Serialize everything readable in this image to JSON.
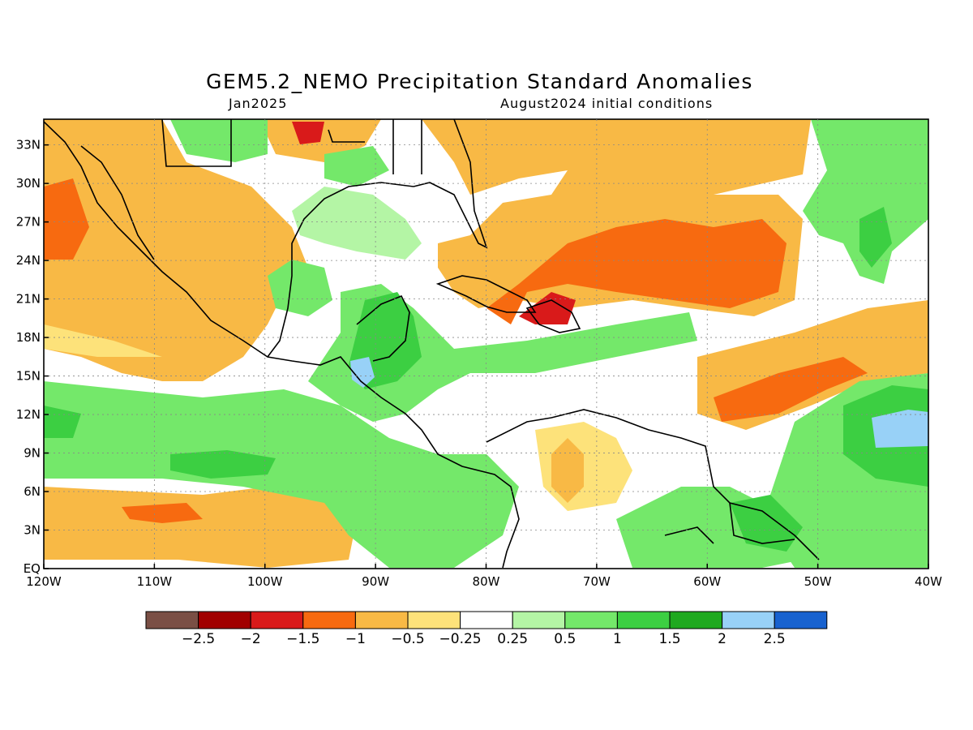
{
  "title": "GEM5.2_NEMO Precipitation Standard Anomalies",
  "subtitle_left": "Jan2025",
  "subtitle_right": "August2024 initial conditions",
  "map": {
    "lon_range": [
      -120,
      -40
    ],
    "lat_range": [
      0,
      35
    ],
    "lon_ticks": [
      {
        "lon": -120,
        "label": "120W"
      },
      {
        "lon": -110,
        "label": "110W"
      },
      {
        "lon": -100,
        "label": "100W"
      },
      {
        "lon": -90,
        "label": "90W"
      },
      {
        "lon": -80,
        "label": "80W"
      },
      {
        "lon": -70,
        "label": "70W"
      },
      {
        "lon": -60,
        "label": "60W"
      },
      {
        "lon": -50,
        "label": "50W"
      },
      {
        "lon": -40,
        "label": "40W"
      }
    ],
    "lat_ticks": [
      {
        "lat": 0,
        "label": "EQ"
      },
      {
        "lat": 3,
        "label": "3N"
      },
      {
        "lat": 6,
        "label": "6N"
      },
      {
        "lat": 9,
        "label": "9N"
      },
      {
        "lat": 12,
        "label": "12N"
      },
      {
        "lat": 15,
        "label": "15N"
      },
      {
        "lat": 18,
        "label": "18N"
      },
      {
        "lat": 21,
        "label": "21N"
      },
      {
        "lat": 24,
        "label": "24N"
      },
      {
        "lat": 27,
        "label": "27N"
      },
      {
        "lat": 30,
        "label": "30N"
      },
      {
        "lat": 33,
        "label": "33N"
      }
    ],
    "grid": true
  },
  "colorbar": {
    "colors": [
      "#7a4f45",
      "#a10000",
      "#d91a1a",
      "#f76a10",
      "#f8b945",
      "#fde27a",
      "#ffffff",
      "#b4f5a5",
      "#74e86a",
      "#3ccf42",
      "#1fa91f",
      "#98d1f7",
      "#1862cf"
    ],
    "labels": [
      "−2.5",
      "−2",
      "−1.5",
      "−1",
      "−0.5",
      "−0.25",
      "0.25",
      "0.5",
      "1",
      "1.5",
      "2",
      "2.5"
    ]
  }
}
